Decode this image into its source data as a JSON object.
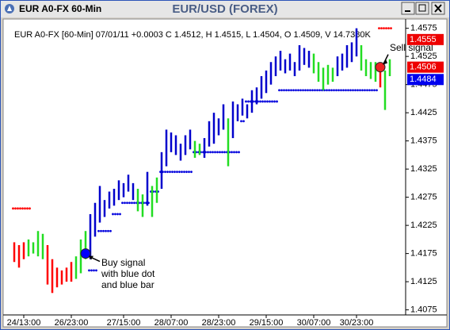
{
  "window": {
    "caption": "EUR A0-FX 60-Min"
  },
  "chart_data": {
    "type": "range_bar",
    "title": "EUR/USD (FOREX)",
    "info": "EUR A0-FX [60-Min] 07/01/11  +0.0003 C 1.4512, H 1.4515, L 1.4504, O 1.4509, V 14.7380K",
    "categories": [
      null,
      null,
      "24/13:00",
      null,
      null,
      null,
      null,
      null,
      null,
      null,
      null,
      null,
      "26/23:00",
      null,
      null,
      null,
      null,
      null,
      null,
      null,
      null,
      null,
      null,
      "27/15:00",
      null,
      null,
      null,
      null,
      null,
      null,
      null,
      null,
      null,
      "28/07:00",
      null,
      null,
      null,
      null,
      null,
      null,
      null,
      null,
      null,
      "28/23:00",
      null,
      null,
      null,
      null,
      null,
      null,
      null,
      null,
      null,
      "29/15:00",
      null,
      null,
      null,
      null,
      null,
      null,
      null,
      null,
      null,
      "30/07:00",
      null,
      null,
      null,
      null,
      null,
      null,
      null,
      null,
      "30/23:00",
      null,
      null,
      null,
      null,
      null,
      null,
      null
    ],
    "bars": {
      "high": [
        1.4195,
        1.419,
        1.4195,
        1.42,
        1.4195,
        1.4215,
        1.421,
        1.419,
        1.4165,
        1.415,
        1.4145,
        1.415,
        1.416,
        1.417,
        1.42,
        1.4215,
        1.4245,
        1.4265,
        1.4295,
        1.427,
        1.4285,
        1.429,
        1.4305,
        1.43,
        1.4315,
        1.43,
        1.429,
        1.428,
        1.432,
        1.4295,
        1.431,
        1.4355,
        1.4395,
        1.439,
        1.4385,
        1.437,
        1.4385,
        1.4395,
        1.4375,
        1.437,
        1.438,
        1.441,
        1.4425,
        1.4415,
        1.444,
        1.4415,
        1.4445,
        1.444,
        1.445,
        1.444,
        1.4465,
        1.447,
        1.449,
        1.45,
        1.4515,
        1.4525,
        1.4535,
        1.452,
        1.453,
        1.4515,
        1.4545,
        1.454,
        1.4535,
        1.453,
        1.4515,
        1.4505,
        1.451,
        1.4505,
        1.4525,
        1.453,
        1.4545,
        1.455,
        1.4575,
        1.4545,
        1.452,
        1.4515,
        1.4515,
        1.4505,
        1.45,
        1.452
      ],
      "low": [
        1.416,
        1.415,
        1.4165,
        1.417,
        1.4175,
        1.417,
        1.4165,
        1.412,
        1.4105,
        1.4115,
        1.412,
        1.4125,
        1.4125,
        1.413,
        1.414,
        1.4165,
        1.4165,
        1.4205,
        1.423,
        1.424,
        1.4255,
        1.426,
        1.427,
        1.4275,
        1.4285,
        1.427,
        1.425,
        1.424,
        1.426,
        1.424,
        1.4265,
        1.429,
        1.433,
        1.4355,
        1.435,
        1.434,
        1.435,
        1.436,
        1.4345,
        1.435,
        1.4345,
        1.4365,
        1.437,
        1.4385,
        1.4395,
        1.433,
        1.438,
        1.441,
        1.442,
        1.4415,
        1.4425,
        1.444,
        1.445,
        1.446,
        1.4475,
        1.449,
        1.45,
        1.4495,
        1.45,
        1.449,
        1.45,
        1.451,
        1.4505,
        1.4495,
        1.448,
        1.4465,
        1.4475,
        1.448,
        1.449,
        1.45,
        1.4505,
        1.4515,
        1.4525,
        1.45,
        1.449,
        1.4485,
        1.448,
        1.447,
        1.443,
        1.449
      ],
      "color": [
        "red",
        "red",
        "red",
        "#22dd22",
        "#22dd22",
        "#22dd22",
        "#22dd22",
        "red",
        "red",
        "red",
        "red",
        "red",
        "red",
        "#22dd22",
        "#22dd22",
        "#22dd22",
        "#0000cc",
        "#0000cc",
        "#0000cc",
        "#0000cc",
        "#0000cc",
        "#0000cc",
        "#0000cc",
        "#0000cc",
        "#0000cc",
        "#0000cc",
        "#22dd22",
        "#22dd22",
        "#0000cc",
        "#22dd22",
        "#22dd22",
        "#0000cc",
        "#0000cc",
        "#0000cc",
        "#0000cc",
        "#0000cc",
        "#0000cc",
        "#0000cc",
        "#22dd22",
        "#22dd22",
        "#0000cc",
        "#0000cc",
        "#0000cc",
        "#0000cc",
        "#0000cc",
        "#22dd22",
        "#0000cc",
        "#0000cc",
        "#0000cc",
        "#0000cc",
        "#0000cc",
        "#0000cc",
        "#0000cc",
        "#0000cc",
        "#0000cc",
        "#0000cc",
        "#0000cc",
        "#0000cc",
        "#0000cc",
        "#0000cc",
        "#0000cc",
        "#0000cc",
        "#0000cc",
        "#22dd22",
        "#22dd22",
        "#22dd22",
        "#22dd22",
        "#22dd22",
        "#0000cc",
        "#0000cc",
        "#0000cc",
        "#0000cc",
        "#0000cc",
        "#22dd22",
        "#22dd22",
        "#22dd22",
        "#22dd22",
        "red",
        "#22dd22",
        "#22dd22"
      ]
    },
    "stops": [
      {
        "color": "red",
        "values": [
          1.4255,
          1.4255,
          1.4255,
          1.4255,
          null,
          null,
          null,
          null,
          null,
          null,
          null,
          null,
          null,
          null,
          null,
          null,
          null,
          null,
          null,
          null,
          null,
          null,
          null,
          null,
          null,
          null,
          null,
          null,
          null,
          null,
          null,
          null,
          null,
          null,
          null,
          null,
          null,
          null,
          null,
          null,
          null,
          null,
          null,
          null,
          null,
          null,
          null,
          null,
          null,
          null,
          null,
          null,
          null,
          null,
          null,
          null,
          null,
          null,
          null,
          null,
          null,
          null,
          null,
          null,
          null,
          null,
          null,
          null,
          null,
          null,
          null,
          null,
          null,
          null,
          null,
          null,
          null,
          1.4575,
          1.4575,
          1.4575
        ]
      },
      {
        "color": "#0000dd",
        "values": [
          null,
          null,
          null,
          null,
          null,
          null,
          null,
          null,
          null,
          null,
          null,
          null,
          null,
          null,
          null,
          null,
          1.4145,
          1.4145,
          1.4215,
          1.4215,
          1.4215,
          1.4245,
          1.4245,
          1.4265,
          1.4265,
          1.4265,
          1.4265,
          1.4265,
          1.4265,
          1.4285,
          1.4285,
          1.432,
          1.432,
          1.432,
          1.432,
          1.432,
          1.432,
          1.432,
          1.4355,
          1.4355,
          1.4355,
          1.4355,
          1.4355,
          1.4355,
          1.4355,
          1.4355,
          1.4355,
          1.4355,
          1.441,
          1.4445,
          1.4445,
          1.4445,
          1.4445,
          1.4445,
          1.4445,
          1.4445,
          1.4465,
          1.4465,
          1.4465,
          1.4465,
          1.4465,
          1.4465,
          1.4465,
          1.4465,
          1.4465,
          1.4465,
          1.4465,
          1.4465,
          1.4465,
          1.4465,
          1.4465,
          1.4465,
          1.4465,
          1.4465,
          1.4465,
          1.4465,
          1.4465,
          null,
          null,
          null
        ]
      }
    ],
    "signals": [
      {
        "index": 15,
        "value": 1.4175,
        "color": "#0000ff",
        "lines": [
          "Buy signal",
          "with blue dot",
          "and blue bar"
        ]
      },
      {
        "index": 77,
        "value": 1.4506,
        "color": "#ee2222",
        "lines": [
          "Sell signal"
        ]
      }
    ],
    "price_labels": [
      {
        "value": 1.4555,
        "color": "#ee0000"
      },
      {
        "value": 1.4506,
        "color": "#ee0000"
      },
      {
        "value": 1.4484,
        "color": "#0000ee"
      }
    ],
    "ylim": [
      1.4066,
      1.459
    ],
    "yticks": [
      1.4075,
      1.4125,
      1.4175,
      1.4225,
      1.4275,
      1.4325,
      1.4375,
      1.4425,
      1.4475,
      1.4525,
      1.4575
    ]
  }
}
